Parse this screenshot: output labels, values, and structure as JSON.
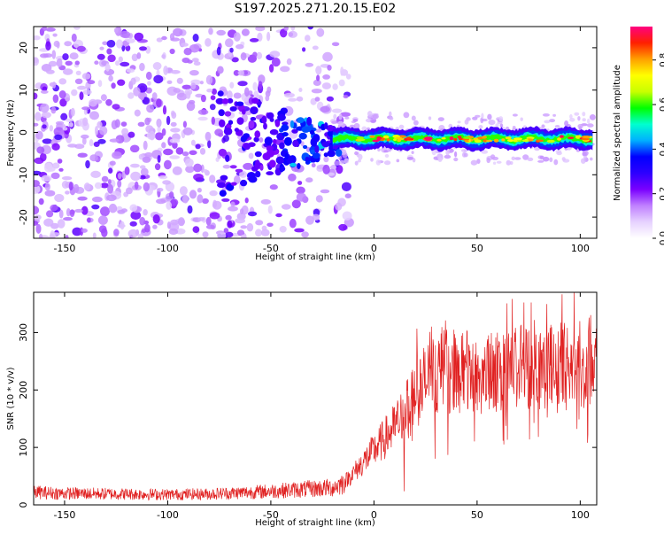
{
  "figure": {
    "title": "S197.2025.271.20.15.E02"
  },
  "chart_data": [
    {
      "type": "heatmap",
      "title": "S197.2025.271.20.15.E02",
      "xlabel": "Height of straight line (km)",
      "ylabel": "Frequency (Hz)",
      "xlim": [
        -165,
        108
      ],
      "ylim": [
        -25,
        25
      ],
      "xticks": [
        -150,
        -100,
        -50,
        0,
        50,
        100
      ],
      "yticks": [
        -20,
        -10,
        0,
        10,
        20
      ],
      "colorbar": {
        "label": "Normalized spectral amplitude",
        "range": [
          0,
          0.95
        ],
        "ticks": [
          "0.0",
          "0.2",
          "0.4",
          "0.6",
          "0.8"
        ],
        "colors": [
          "#ffffff",
          "#e6d2ff",
          "#c080ff",
          "#7a00ff",
          "#2d00ff",
          "#0000ff",
          "#00b0ff",
          "#00ffd0",
          "#00ff00",
          "#c8ff00",
          "#ffff00",
          "#ffa000",
          "#ff2000",
          "#ff0080"
        ]
      },
      "signal_band": {
        "x_start": -20,
        "x_end": 106,
        "center_frequency": -1.5,
        "band_peaks_x": [
          0,
          15,
          25,
          40,
          60,
          80,
          95,
          105
        ]
      },
      "noise_region": {
        "x_start": -165,
        "x_end": -18
      }
    },
    {
      "type": "line",
      "xlabel": "Height of straight line (km)",
      "ylabel": "SNR (10 * v/v)",
      "xlim": [
        -165,
        108
      ],
      "ylim": [
        0,
        370
      ],
      "xticks": [
        -150,
        -100,
        -50,
        0,
        50,
        100
      ],
      "yticks": [
        0,
        100,
        200,
        300
      ],
      "series": [
        {
          "name": "SNR",
          "color": "#e02020",
          "x": [
            -165,
            -150,
            -120,
            -100,
            -80,
            -60,
            -50,
            -40,
            -30,
            -20,
            -15,
            -10,
            -5,
            0,
            5,
            10,
            15,
            20,
            25,
            30,
            40,
            50,
            60,
            70,
            80,
            90,
            100,
            108
          ],
          "values": [
            22,
            20,
            19,
            18,
            19,
            22,
            24,
            26,
            28,
            30,
            38,
            55,
            75,
            95,
            115,
            135,
            160,
            190,
            215,
            230,
            235,
            225,
            230,
            240,
            245,
            240,
            245,
            250
          ]
        }
      ]
    }
  ]
}
